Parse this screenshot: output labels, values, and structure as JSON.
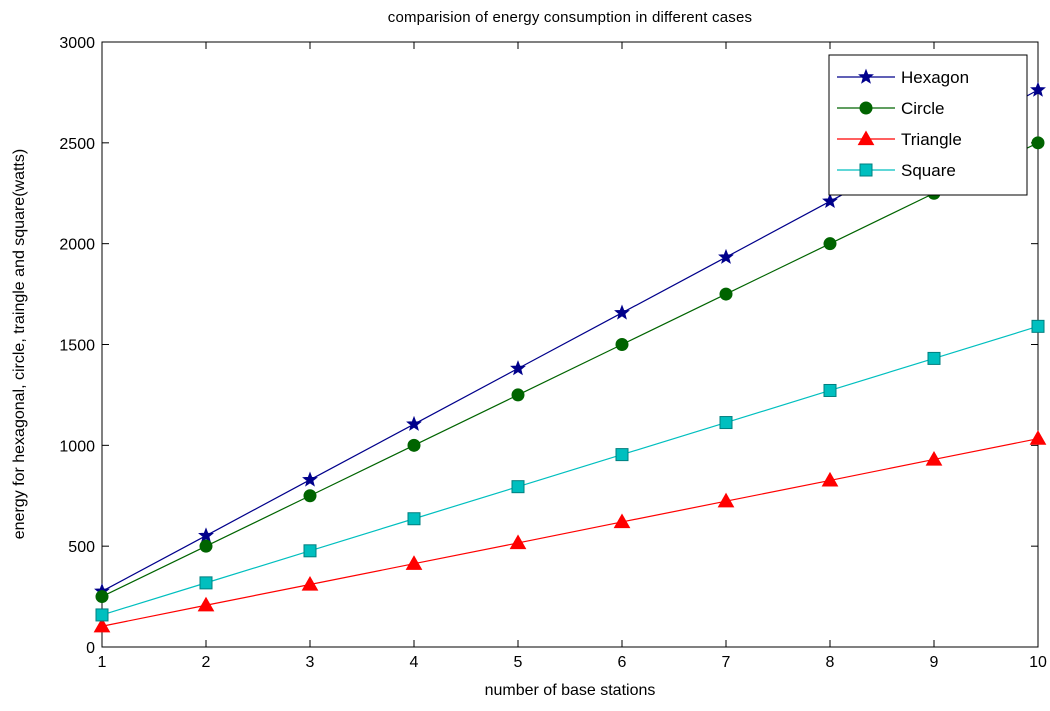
{
  "chart_data": {
    "type": "line",
    "title": "comparision of energy consumption in different cases",
    "xlabel": "number of base stations",
    "ylabel": "energy for hexagonal, circle, traingle and square(watts)",
    "x": [
      1,
      2,
      3,
      4,
      5,
      6,
      7,
      8,
      9,
      10
    ],
    "xlim": [
      1,
      10
    ],
    "ylim": [
      0,
      3000
    ],
    "xticks": [
      1,
      2,
      3,
      4,
      5,
      6,
      7,
      8,
      9,
      10
    ],
    "yticks": [
      0,
      500,
      1000,
      1500,
      2000,
      2500,
      3000
    ],
    "grid": false,
    "legend_position": "top-right",
    "series": [
      {
        "name": "Hexagon",
        "color": "#00008b",
        "marker": "star",
        "values": [
          276,
          552,
          829,
          1105,
          1381,
          1657,
          1933,
          2210,
          2486,
          2762
        ]
      },
      {
        "name": "Circle",
        "color": "#006400",
        "marker": "circle",
        "values": [
          250,
          500,
          750,
          1000,
          1250,
          1500,
          1750,
          2000,
          2250,
          2500
        ]
      },
      {
        "name": "Triangle",
        "color": "#ff0000",
        "marker": "triangle",
        "values": [
          103,
          207,
          310,
          413,
          516,
          620,
          723,
          826,
          930,
          1033
        ]
      },
      {
        "name": "Square",
        "color": "#00bfbf",
        "marker": "square",
        "values": [
          159,
          318,
          477,
          636,
          795,
          954,
          1113,
          1272,
          1431,
          1590
        ]
      }
    ]
  }
}
